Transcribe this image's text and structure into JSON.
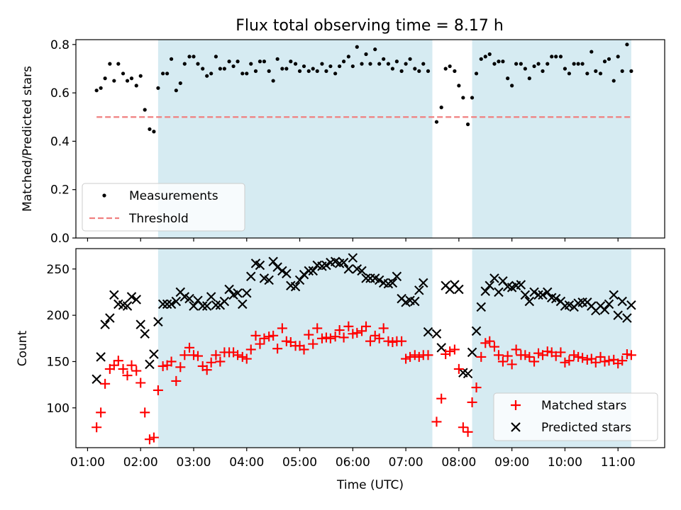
{
  "chart_data": [
    {
      "type": "scatter",
      "title": "Flux total observing time = 8.17 h",
      "xlabel": "",
      "ylabel": "Matched/Predicted stars",
      "xlim": [
        0.78,
        11.88
      ],
      "ylim": [
        0.0,
        0.82
      ],
      "yticks": [
        0.0,
        0.2,
        0.4,
        0.6,
        0.8
      ],
      "ytick_labels": [
        "0.0",
        "0.2",
        "0.4",
        "0.6",
        "0.8"
      ],
      "shaded_intervals": [
        [
          2.33,
          7.5
        ],
        [
          8.25,
          11.25
        ]
      ],
      "threshold": {
        "y": 0.5,
        "x_range": [
          1.17,
          11.25
        ]
      },
      "legend": {
        "position": "lower-left",
        "entries": [
          "Measurements",
          "Threshold"
        ]
      },
      "series": [
        {
          "name": "Measurements",
          "x": [
            1.17,
            1.25,
            1.33,
            1.42,
            1.5,
            1.58,
            1.67,
            1.75,
            1.83,
            1.92,
            2.0,
            2.08,
            2.17,
            2.25,
            2.33,
            2.42,
            2.5,
            2.58,
            2.67,
            2.75,
            2.83,
            2.92,
            3.0,
            3.08,
            3.17,
            3.25,
            3.33,
            3.42,
            3.5,
            3.58,
            3.67,
            3.75,
            3.83,
            3.92,
            4.0,
            4.08,
            4.17,
            4.25,
            4.33,
            4.42,
            4.5,
            4.58,
            4.67,
            4.75,
            4.83,
            4.92,
            5.0,
            5.08,
            5.17,
            5.25,
            5.33,
            5.42,
            5.5,
            5.58,
            5.67,
            5.75,
            5.83,
            5.92,
            6.0,
            6.08,
            6.17,
            6.25,
            6.33,
            6.42,
            6.5,
            6.58,
            6.67,
            6.75,
            6.83,
            6.92,
            7.0,
            7.08,
            7.17,
            7.25,
            7.33,
            7.42,
            7.58,
            7.67,
            7.75,
            7.83,
            7.92,
            8.0,
            8.08,
            8.17,
            8.25,
            8.33,
            8.42,
            8.5,
            8.58,
            8.67,
            8.75,
            8.83,
            8.92,
            9.0,
            9.08,
            9.17,
            9.25,
            9.33,
            9.42,
            9.5,
            9.58,
            9.67,
            9.75,
            9.83,
            9.92,
            10.0,
            10.08,
            10.17,
            10.25,
            10.33,
            10.42,
            10.5,
            10.58,
            10.67,
            10.75,
            10.83,
            10.92,
            11.0,
            11.08,
            11.17,
            11.25
          ],
          "y": [
            0.61,
            0.62,
            0.66,
            0.72,
            0.65,
            0.72,
            0.68,
            0.65,
            0.66,
            0.63,
            0.67,
            0.53,
            0.45,
            0.44,
            0.62,
            0.68,
            0.68,
            0.74,
            0.61,
            0.64,
            0.72,
            0.75,
            0.75,
            0.72,
            0.7,
            0.67,
            0.68,
            0.75,
            0.7,
            0.7,
            0.73,
            0.71,
            0.73,
            0.68,
            0.68,
            0.72,
            0.69,
            0.73,
            0.73,
            0.69,
            0.65,
            0.74,
            0.7,
            0.7,
            0.73,
            0.72,
            0.69,
            0.71,
            0.69,
            0.7,
            0.69,
            0.72,
            0.69,
            0.71,
            0.68,
            0.71,
            0.73,
            0.75,
            0.71,
            0.79,
            0.72,
            0.76,
            0.72,
            0.78,
            0.72,
            0.74,
            0.72,
            0.7,
            0.73,
            0.69,
            0.72,
            0.74,
            0.7,
            0.69,
            0.72,
            0.69,
            0.48,
            0.54,
            0.7,
            0.71,
            0.69,
            0.63,
            0.58,
            0.47,
            0.58,
            0.68,
            0.74,
            0.75,
            0.76,
            0.72,
            0.73,
            0.73,
            0.66,
            0.63,
            0.72,
            0.72,
            0.7,
            0.66,
            0.71,
            0.72,
            0.69,
            0.72,
            0.75,
            0.75,
            0.75,
            0.7,
            0.68,
            0.72,
            0.72,
            0.72,
            0.68,
            0.77,
            0.69,
            0.68,
            0.73,
            0.74,
            0.65,
            0.75,
            0.69,
            0.8,
            0.69
          ]
        },
        {
          "name": "Threshold",
          "x": [
            1.17,
            11.25
          ],
          "y": [
            0.5,
            0.5
          ]
        }
      ]
    },
    {
      "type": "scatter",
      "title": "",
      "xlabel": "Time (UTC)",
      "ylabel": "Count",
      "xlim": [
        0.78,
        11.88
      ],
      "ylim": [
        57,
        272
      ],
      "yticks": [
        100,
        150,
        200,
        250
      ],
      "ytick_labels": [
        "100",
        "150",
        "200",
        "250"
      ],
      "xticks": [
        1,
        2,
        3,
        4,
        5,
        6,
        7,
        8,
        9,
        10,
        11
      ],
      "xtick_labels": [
        "01:00",
        "02:00",
        "03:00",
        "04:00",
        "05:00",
        "06:00",
        "07:00",
        "08:00",
        "09:00",
        "10:00",
        "11:00"
      ],
      "shaded_intervals": [
        [
          2.33,
          7.5
        ],
        [
          8.25,
          11.25
        ]
      ],
      "legend": {
        "position": "lower-right",
        "entries": [
          "Matched stars",
          "Predicted stars"
        ]
      },
      "series": [
        {
          "name": "Matched stars",
          "x": [
            1.17,
            1.25,
            1.33,
            1.42,
            1.5,
            1.58,
            1.67,
            1.75,
            1.83,
            1.92,
            2.0,
            2.08,
            2.17,
            2.25,
            2.33,
            2.42,
            2.5,
            2.58,
            2.67,
            2.75,
            2.83,
            2.92,
            3.0,
            3.08,
            3.17,
            3.25,
            3.33,
            3.42,
            3.5,
            3.58,
            3.67,
            3.75,
            3.83,
            3.92,
            4.0,
            4.08,
            4.17,
            4.25,
            4.33,
            4.42,
            4.5,
            4.58,
            4.67,
            4.75,
            4.83,
            4.92,
            5.0,
            5.08,
            5.17,
            5.25,
            5.33,
            5.42,
            5.5,
            5.58,
            5.67,
            5.75,
            5.83,
            5.92,
            6.0,
            6.08,
            6.17,
            6.25,
            6.33,
            6.42,
            6.5,
            6.58,
            6.67,
            6.75,
            6.83,
            6.92,
            7.0,
            7.08,
            7.17,
            7.25,
            7.33,
            7.42,
            7.58,
            7.67,
            7.75,
            7.83,
            7.92,
            8.0,
            8.08,
            8.17,
            8.25,
            8.33,
            8.42,
            8.5,
            8.58,
            8.67,
            8.75,
            8.83,
            8.92,
            9.0,
            9.08,
            9.17,
            9.25,
            9.33,
            9.42,
            9.5,
            9.58,
            9.67,
            9.75,
            9.83,
            9.92,
            10.0,
            10.08,
            10.17,
            10.25,
            10.33,
            10.42,
            10.5,
            10.58,
            10.67,
            10.75,
            10.83,
            10.92,
            11.0,
            11.08,
            11.17,
            11.25
          ],
          "y": [
            79,
            95,
            126,
            142,
            146,
            151,
            142,
            135,
            146,
            140,
            127,
            95,
            66,
            68,
            119,
            145,
            146,
            150,
            129,
            144,
            157,
            165,
            157,
            156,
            145,
            141,
            149,
            157,
            150,
            160,
            160,
            160,
            157,
            155,
            153,
            163,
            178,
            169,
            175,
            177,
            178,
            164,
            186,
            172,
            171,
            167,
            167,
            163,
            179,
            169,
            186,
            175,
            176,
            175,
            177,
            184,
            176,
            188,
            180,
            181,
            183,
            188,
            172,
            178,
            175,
            186,
            172,
            171,
            172,
            172,
            153,
            155,
            157,
            155,
            157,
            157,
            85,
            110,
            158,
            161,
            163,
            142,
            79,
            74,
            106,
            122,
            155,
            170,
            172,
            166,
            157,
            150,
            156,
            147,
            163,
            157,
            157,
            155,
            150,
            159,
            157,
            161,
            160,
            156,
            160,
            149,
            151,
            157,
            155,
            154,
            152,
            153,
            149,
            155,
            150,
            151,
            152,
            148,
            151,
            158,
            157
          ],
          "marker": "+",
          "color": "#ff0000"
        },
        {
          "name": "Predicted stars",
          "x": [
            1.17,
            1.25,
            1.33,
            1.42,
            1.5,
            1.58,
            1.67,
            1.75,
            1.83,
            1.92,
            2.0,
            2.08,
            2.17,
            2.25,
            2.33,
            2.42,
            2.5,
            2.58,
            2.67,
            2.75,
            2.83,
            2.92,
            3.0,
            3.08,
            3.17,
            3.25,
            3.33,
            3.42,
            3.5,
            3.58,
            3.67,
            3.75,
            3.83,
            3.92,
            4.0,
            4.08,
            4.17,
            4.25,
            4.33,
            4.42,
            4.5,
            4.58,
            4.67,
            4.75,
            4.83,
            4.92,
            5.0,
            5.08,
            5.17,
            5.25,
            5.33,
            5.42,
            5.5,
            5.58,
            5.67,
            5.75,
            5.83,
            5.92,
            6.0,
            6.08,
            6.17,
            6.25,
            6.33,
            6.42,
            6.5,
            6.58,
            6.67,
            6.75,
            6.83,
            6.92,
            7.0,
            7.08,
            7.17,
            7.25,
            7.33,
            7.42,
            7.58,
            7.67,
            7.75,
            7.83,
            7.92,
            8.0,
            8.08,
            8.17,
            8.25,
            8.33,
            8.42,
            8.5,
            8.58,
            8.67,
            8.75,
            8.83,
            8.92,
            9.0,
            9.08,
            9.17,
            9.25,
            9.33,
            9.42,
            9.5,
            9.58,
            9.67,
            9.75,
            9.83,
            9.92,
            10.0,
            10.08,
            10.17,
            10.25,
            10.33,
            10.42,
            10.5,
            10.58,
            10.67,
            10.75,
            10.83,
            10.92,
            11.0,
            11.08,
            11.17,
            11.25
          ],
          "y": [
            131,
            155,
            190,
            197,
            222,
            212,
            211,
            210,
            220,
            217,
            190,
            180,
            147,
            158,
            193,
            212,
            212,
            212,
            215,
            225,
            220,
            218,
            210,
            216,
            210,
            210,
            220,
            211,
            211,
            215,
            228,
            222,
            224,
            212,
            224,
            242,
            256,
            254,
            240,
            238,
            258,
            252,
            248,
            245,
            232,
            231,
            238,
            244,
            248,
            248,
            254,
            253,
            254,
            257,
            258,
            256,
            257,
            250,
            262,
            250,
            248,
            240,
            240,
            240,
            238,
            235,
            234,
            235,
            242,
            218,
            214,
            216,
            215,
            227,
            235,
            182,
            180,
            165,
            232,
            228,
            233,
            228,
            138,
            137,
            160,
            183,
            209,
            226,
            232,
            240,
            225,
            237,
            231,
            230,
            232,
            233,
            222,
            215,
            225,
            222,
            222,
            225,
            219,
            218,
            215,
            210,
            211,
            209,
            213,
            214,
            214,
            210,
            205,
            210,
            206,
            212,
            222,
            200,
            215,
            197,
            211
          ],
          "marker": "x",
          "color": "#000000"
        }
      ]
    }
  ]
}
